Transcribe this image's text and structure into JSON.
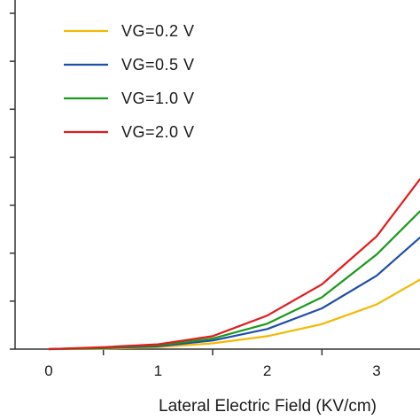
{
  "chart_data": {
    "type": "line",
    "xlabel": "Lateral Electric Field (KV/cm)",
    "ylabel": "",
    "x_ticks": [
      0,
      1,
      2,
      3
    ],
    "xlim": [
      -0.3,
      3.4
    ],
    "ylim": [
      0,
      7
    ],
    "y_tick_count": 7,
    "x": [
      0,
      0.5,
      1,
      1.5,
      2,
      2.5,
      3,
      3.4
    ],
    "series": [
      {
        "name": "VG=0.2 V",
        "color": "#F5B800",
        "values": [
          0,
          0.01,
          0.04,
          0.12,
          0.27,
          0.52,
          0.93,
          1.45
        ]
      },
      {
        "name": "VG=0.5 V",
        "color": "#1F4EAA",
        "values": [
          0,
          0.02,
          0.06,
          0.18,
          0.42,
          0.85,
          1.53,
          2.33
        ]
      },
      {
        "name": "VG=1.0 V",
        "color": "#1A9A1A",
        "values": [
          0,
          0.03,
          0.08,
          0.22,
          0.53,
          1.08,
          1.97,
          2.88
        ]
      },
      {
        "name": "VG=2.0 V",
        "color": "#E31A1C",
        "values": [
          0,
          0.04,
          0.1,
          0.27,
          0.7,
          1.35,
          2.35,
          3.55
        ]
      }
    ],
    "legend": "top-left",
    "grid": false
  }
}
